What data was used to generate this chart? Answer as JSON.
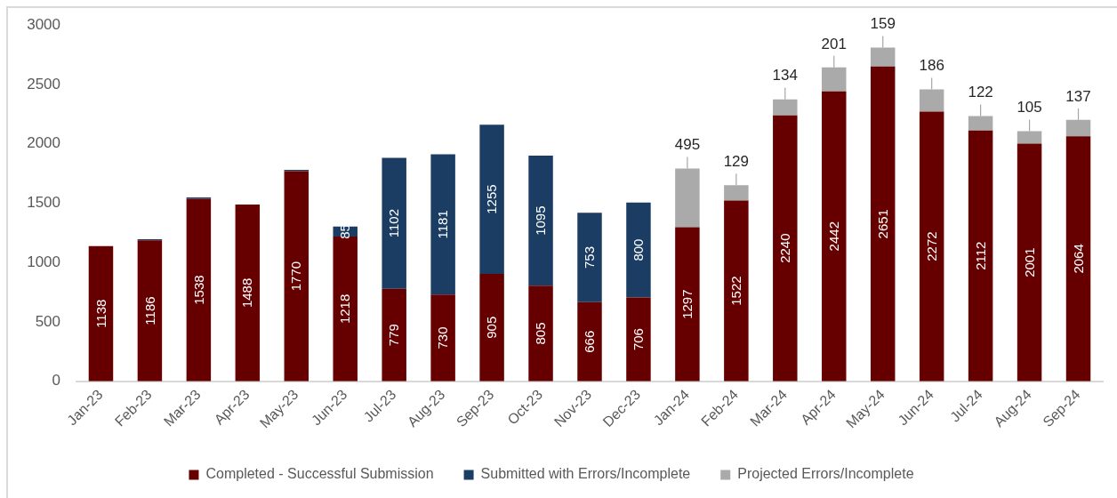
{
  "chart_data": {
    "type": "bar",
    "stacked": true,
    "categories": [
      "Jan-23",
      "Feb-23",
      "Mar-23",
      "Apr-23",
      "May-23",
      "Jun-23",
      "Jul-23",
      "Aug-23",
      "Sep-23",
      "Oct-23",
      "Nov-23",
      "Dec-23",
      "Jan-24",
      "Feb-24",
      "Mar-24",
      "Apr-24",
      "May-24",
      "Jun-24",
      "Jul-24",
      "Aug-24",
      "Sep-24"
    ],
    "series": [
      {
        "name": "Completed - Successful Submission",
        "color": "#660000",
        "values": [
          1138,
          1186,
          1538,
          1488,
          1770,
          1218,
          779,
          730,
          905,
          805,
          666,
          706,
          1297,
          1522,
          2240,
          2442,
          2651,
          2272,
          2112,
          2001,
          2064
        ],
        "value_labels": [
          "1138",
          "1186",
          "1538",
          "1488",
          "1770",
          "1218",
          "779",
          "730",
          "905",
          "805",
          "666",
          "706",
          "1297",
          "1522",
          "2240",
          "2442",
          "2651",
          "2272",
          "2112",
          "2001",
          "2064"
        ]
      },
      {
        "name": "Submitted with Errors/Incomplete",
        "color": "#1b3d63",
        "values": [
          null,
          10,
          10,
          null,
          10,
          85,
          1102,
          1181,
          1255,
          1095,
          753,
          800,
          null,
          null,
          null,
          null,
          null,
          null,
          null,
          null,
          null
        ],
        "value_labels": [
          null,
          null,
          null,
          null,
          null,
          "85",
          "1102",
          "1181",
          "1255",
          "1095",
          "753",
          "800",
          null,
          null,
          null,
          null,
          null,
          null,
          null,
          null,
          null
        ]
      },
      {
        "name": "Projected Errors/Incomplete",
        "color": "#aaaaaa",
        "values": [
          null,
          null,
          null,
          null,
          null,
          null,
          null,
          null,
          null,
          null,
          null,
          null,
          495,
          129,
          134,
          201,
          159,
          186,
          122,
          105,
          137
        ],
        "value_labels": [
          null,
          null,
          null,
          null,
          null,
          null,
          null,
          null,
          null,
          null,
          null,
          null,
          "495",
          "129",
          "134",
          "201",
          "159",
          "186",
          "122",
          "105",
          "137"
        ]
      }
    ],
    "ylim": [
      0,
      3000
    ],
    "yticks": [
      0,
      500,
      1000,
      1500,
      2000,
      2500,
      3000
    ],
    "grid": false,
    "legend": "bottom"
  }
}
